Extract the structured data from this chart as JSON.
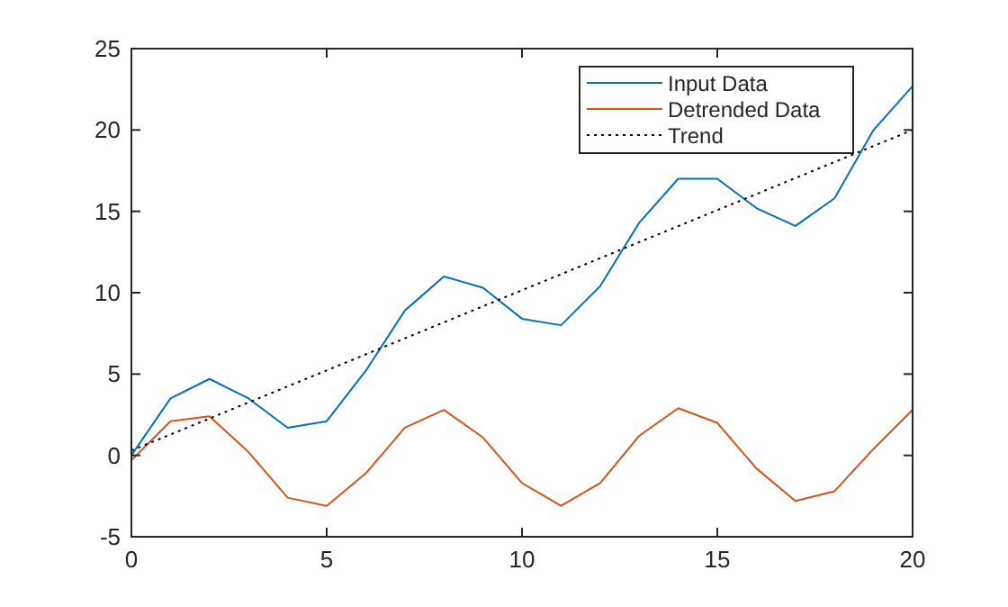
{
  "chart_data": {
    "type": "line",
    "x": [
      0,
      1,
      2,
      3,
      4,
      5,
      6,
      7,
      8,
      9,
      10,
      11,
      12,
      13,
      14,
      15,
      16,
      17,
      18,
      19,
      20
    ],
    "series": [
      {
        "name": "Input Data",
        "color": "#0072bd",
        "values": [
          0,
          3.5,
          4.7,
          3.5,
          1.7,
          2.1,
          5.2,
          8.9,
          11,
          10.3,
          8.4,
          8,
          10.4,
          14.3,
          17,
          17,
          15.2,
          14.1,
          15.8,
          20,
          22.7
        ]
      },
      {
        "name": "Detrended Data",
        "color": "#d95319",
        "values": [
          -0.3,
          2.1,
          2.4,
          0.2,
          -2.6,
          -3.1,
          -1.1,
          1.7,
          2.8,
          1.1,
          -1.7,
          -3.1,
          -1.7,
          1.2,
          2.9,
          2,
          -0.8,
          -2.8,
          -2.2,
          0.4,
          2.8
        ]
      },
      {
        "name": "Trend",
        "color": "#000000",
        "x": [
          0,
          20
        ],
        "values": [
          0.3,
          20
        ],
        "line_style": "dotted"
      }
    ],
    "xlim": [
      0,
      20
    ],
    "xticks": [
      0,
      5,
      10,
      15,
      20
    ],
    "ylim": [
      -5,
      25
    ],
    "yticks": [
      -5,
      0,
      5,
      10,
      15,
      20,
      25
    ],
    "legend": "top right",
    "marker": "none",
    "line_style": "solid",
    "grid": false
  }
}
